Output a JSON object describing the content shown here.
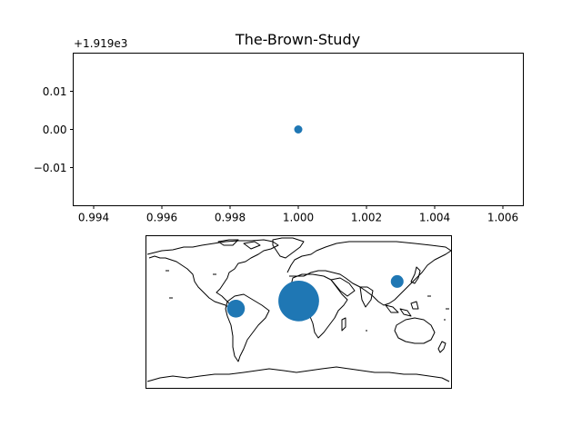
{
  "chart_data": [
    {
      "type": "scatter",
      "title": "The-Brown-Study",
      "xlabel": "",
      "ylabel": "",
      "y_offset_text": "+1.919e3",
      "xlim": [
        0.9934,
        1.0066
      ],
      "ylim": [
        -0.02,
        0.02
      ],
      "x_ticks": [
        0.994,
        0.996,
        0.998,
        1.0,
        1.002,
        1.004,
        1.006
      ],
      "x_tick_labels": [
        "0.994",
        "0.996",
        "0.998",
        "1.000",
        "1.002",
        "1.004",
        "1.006"
      ],
      "y_ticks": [
        0.01,
        0.0,
        -0.01
      ],
      "y_tick_labels": [
        "0.01",
        "0.00",
        "−0.01"
      ],
      "series": [
        {
          "x": [
            1.0
          ],
          "y": [
            0.0
          ],
          "color": "#1f77b4"
        }
      ],
      "grid": false
    },
    {
      "type": "scatter",
      "subtype": "geographic-bubble-map",
      "projection": "plate-carree",
      "lon_range": [
        -180,
        180
      ],
      "lat_range": [
        -90,
        90
      ],
      "bubble_color": "#1f77b4",
      "points": [
        {
          "lon": 0,
          "lat": 13,
          "size": 3.2
        },
        {
          "lon": -74,
          "lat": 4,
          "size": 1.4
        },
        {
          "lon": 116,
          "lat": 36,
          "size": 1.0
        }
      ]
    }
  ]
}
